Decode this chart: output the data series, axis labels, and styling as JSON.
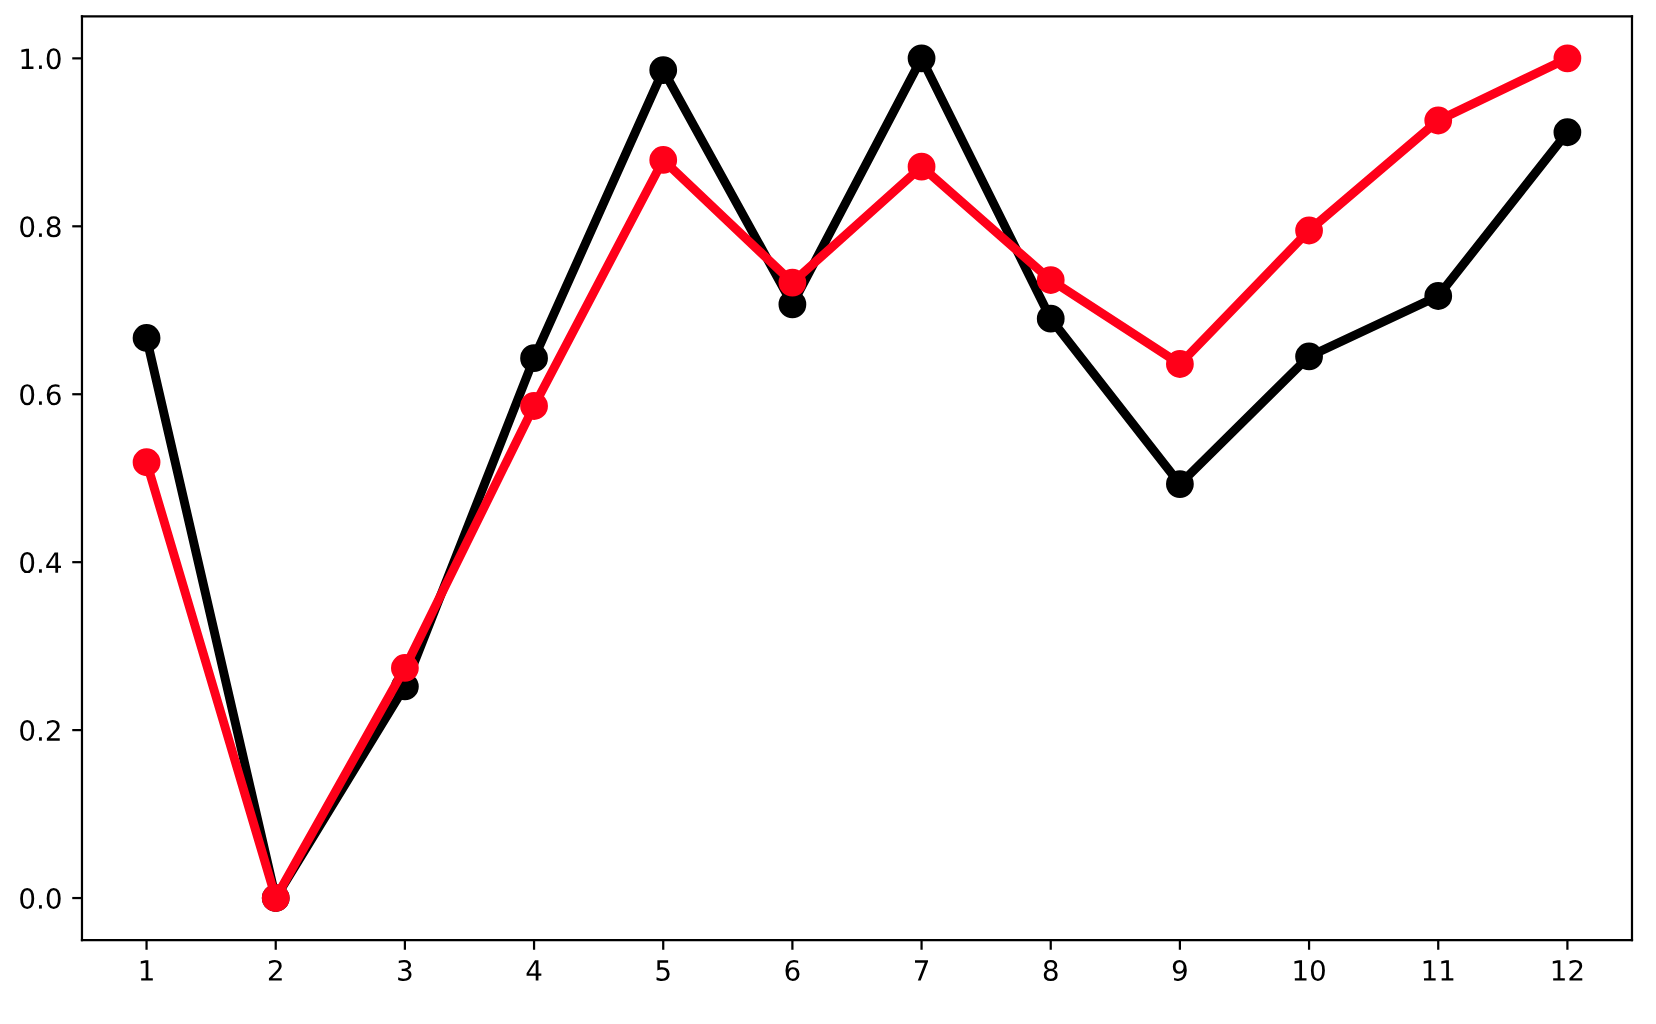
{
  "chart_data": {
    "type": "line",
    "x": [
      1,
      2,
      3,
      4,
      5,
      6,
      7,
      8,
      9,
      10,
      11,
      12
    ],
    "series": [
      {
        "color": "#000000",
        "values": [
          0.667,
          0.0,
          0.252,
          0.643,
          0.986,
          0.707,
          1.0,
          0.69,
          0.493,
          0.645,
          0.717,
          0.912
        ]
      },
      {
        "color": "#ff0019",
        "values": [
          0.519,
          0.0,
          0.274,
          0.586,
          0.879,
          0.733,
          0.871,
          0.736,
          0.636,
          0.795,
          0.926,
          1.0
        ]
      }
    ],
    "xlim": [
      0.5,
      12.5
    ],
    "xticks": [
      1,
      2,
      3,
      4,
      5,
      6,
      7,
      8,
      9,
      10,
      11,
      12
    ],
    "ylim": [
      -0.05,
      1.05
    ],
    "yticks": [
      {
        "value": 0,
        "label": "0.0"
      },
      {
        "value": 0.2,
        "label": "0.2"
      },
      {
        "value": 0.4,
        "label": "0.4"
      },
      {
        "value": 0.6,
        "label": "0.6"
      },
      {
        "value": 0.8,
        "label": "0.8"
      },
      {
        "value": 1.0,
        "label": "1.0"
      }
    ],
    "marker": "circle",
    "line_style": "solid",
    "grid": false,
    "legend": false
  }
}
